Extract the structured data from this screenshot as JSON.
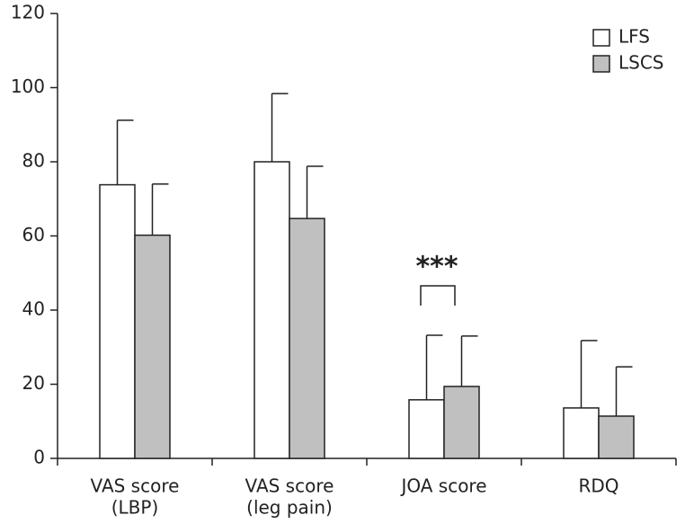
{
  "chart_data": {
    "type": "bar",
    "categories": [
      [
        "VAS score",
        "(LBP)"
      ],
      [
        "VAS score",
        "(leg pain)"
      ],
      [
        "JOA score"
      ],
      [
        "RDQ"
      ]
    ],
    "series": [
      {
        "name": "LFS",
        "color": "#ffffff",
        "values": [
          73.8,
          80.0,
          15.8,
          13.6
        ],
        "errors": [
          17.4,
          18.4,
          17.4,
          18.2
        ]
      },
      {
        "name": "LSCS",
        "color": "#c0c0c0",
        "values": [
          60.2,
          64.7,
          19.4,
          11.4
        ],
        "errors": [
          13.8,
          14.1,
          13.6,
          13.3
        ]
      }
    ],
    "ylim": [
      0,
      120
    ],
    "yticks": [
      0,
      20,
      40,
      60,
      80,
      100,
      120
    ],
    "annotation": "***",
    "legend": "top-right",
    "grid": false
  }
}
